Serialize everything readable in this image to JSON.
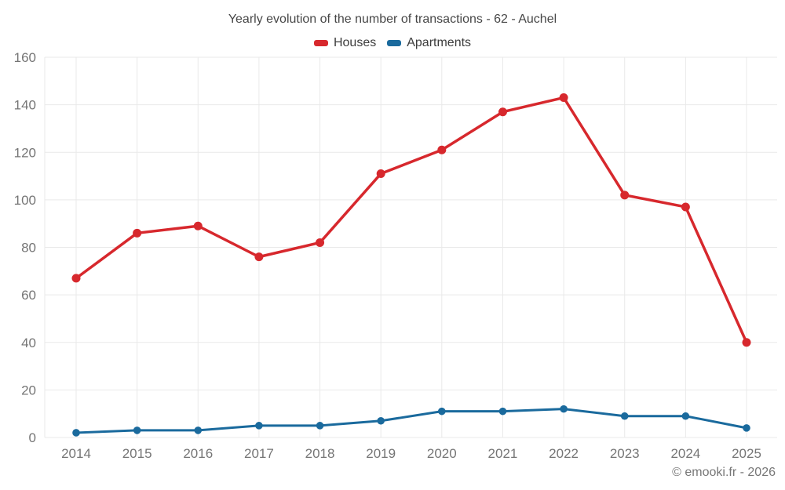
{
  "chart_data": {
    "type": "line",
    "title": "Yearly evolution of the number of transactions - 62 - Auchel",
    "categories": [
      "2014",
      "2015",
      "2016",
      "2017",
      "2018",
      "2019",
      "2020",
      "2021",
      "2022",
      "2023",
      "2024",
      "2025"
    ],
    "series": [
      {
        "name": "Houses",
        "color": "#d7282d",
        "values": [
          67,
          86,
          89,
          76,
          82,
          111,
          121,
          137,
          143,
          102,
          97,
          40
        ]
      },
      {
        "name": "Apartments",
        "color": "#1a6a9d",
        "values": [
          2,
          3,
          3,
          5,
          5,
          7,
          11,
          11,
          12,
          9,
          9,
          4
        ]
      }
    ],
    "xlabel": "",
    "ylabel": "",
    "ylim": [
      0,
      160
    ],
    "ytick_step": 20,
    "yticks": [
      0,
      20,
      40,
      60,
      80,
      100,
      120,
      140,
      160
    ],
    "grid": true,
    "legend_position": "top"
  },
  "legend": {
    "houses_label": "Houses",
    "apartments_label": "Apartments"
  },
  "footer": {
    "copyright": "© emooki.fr - 2026"
  },
  "colors": {
    "houses": "#d7282d",
    "apartments": "#1a6a9d",
    "grid": "#e9e9e9",
    "axis_text": "#757575",
    "title_text": "#474747"
  }
}
